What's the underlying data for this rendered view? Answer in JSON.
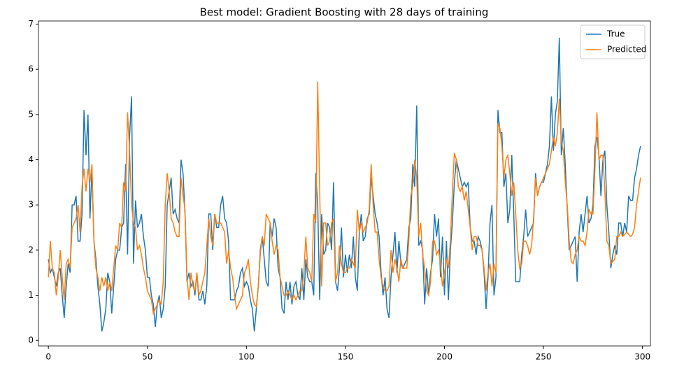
{
  "chart_data": {
    "type": "line",
    "title": "Best model: Gradient Boosting with 28 days of training",
    "x": [
      0,
      1,
      2,
      3,
      4,
      5,
      6,
      7,
      8,
      9,
      10,
      11,
      12,
      13,
      14,
      15,
      16,
      17,
      18,
      19,
      20,
      21,
      22,
      23,
      24,
      25,
      26,
      27,
      28,
      29,
      30,
      31,
      32,
      33,
      34,
      35,
      36,
      37,
      38,
      39,
      40,
      41,
      42,
      43,
      44,
      45,
      46,
      47,
      48,
      49,
      50,
      51,
      52,
      53,
      54,
      55,
      56,
      57,
      58,
      59,
      60,
      61,
      62,
      63,
      64,
      65,
      66,
      67,
      68,
      69,
      70,
      71,
      72,
      73,
      74,
      75,
      76,
      77,
      78,
      79,
      80,
      81,
      82,
      83,
      84,
      85,
      86,
      87,
      88,
      89,
      90,
      91,
      92,
      93,
      94,
      95,
      96,
      97,
      98,
      99,
      100,
      101,
      102,
      103,
      104,
      105,
      106,
      107,
      108,
      109,
      110,
      111,
      112,
      113,
      114,
      115,
      116,
      117,
      118,
      119,
      120,
      121,
      122,
      123,
      124,
      125,
      126,
      127,
      128,
      129,
      130,
      131,
      132,
      133,
      134,
      135,
      136,
      137,
      138,
      139,
      140,
      141,
      142,
      143,
      144,
      145,
      146,
      147,
      148,
      149,
      150,
      151,
      152,
      153,
      154,
      155,
      156,
      157,
      158,
      159,
      160,
      161,
      162,
      163,
      164,
      165,
      166,
      167,
      168,
      169,
      170,
      171,
      172,
      173,
      174,
      175,
      176,
      177,
      178,
      179,
      180,
      181,
      182,
      183,
      184,
      185,
      186,
      187,
      188,
      189,
      190,
      191,
      192,
      193,
      194,
      195,
      196,
      197,
      198,
      199,
      200,
      201,
      202,
      203,
      204,
      205,
      206,
      207,
      208,
      209,
      210,
      211,
      212,
      213,
      214,
      215,
      216,
      217,
      218,
      219,
      220,
      221,
      222,
      223,
      224,
      225,
      226,
      227,
      228,
      229,
      230,
      231,
      232,
      233,
      234,
      235,
      236,
      237,
      238,
      239,
      240,
      241,
      242,
      243,
      244,
      245,
      246,
      247,
      248,
      249,
      250,
      251,
      252,
      253,
      254,
      255,
      256,
      257,
      258,
      259,
      260,
      261,
      262,
      263,
      264,
      265,
      266,
      267,
      268,
      269,
      270,
      271,
      272,
      273,
      274,
      275,
      276,
      277,
      278,
      279,
      280,
      281,
      282,
      283,
      284,
      285,
      286,
      287,
      288,
      289,
      290,
      291,
      292,
      293,
      294,
      295,
      296,
      297,
      298,
      299
    ],
    "series": [
      {
        "name": "True",
        "color": "#1f77b4",
        "values": [
          1.8,
          1.5,
          1.6,
          1.4,
          1.2,
          1.5,
          1.6,
          1.0,
          0.5,
          1.2,
          1.7,
          1.5,
          3.0,
          3.0,
          3.2,
          2.2,
          2.2,
          2.8,
          5.1,
          4.1,
          5.0,
          2.7,
          3.8,
          2.2,
          1.8,
          1.2,
          0.8,
          0.2,
          0.4,
          0.7,
          1.5,
          1.3,
          0.6,
          1.2,
          1.8,
          2.0,
          2.0,
          2.5,
          2.6,
          3.9,
          1.9,
          4.5,
          5.4,
          1.7,
          3.1,
          2.5,
          2.6,
          2.8,
          2.3,
          2.0,
          1.4,
          1.4,
          1.0,
          0.8,
          0.3,
          0.8,
          1.0,
          0.5,
          0.7,
          1.2,
          3.0,
          3.3,
          3.6,
          2.8,
          2.9,
          2.7,
          2.6,
          4.0,
          3.7,
          2.8,
          1.3,
          1.5,
          1.2,
          1.3,
          1.0,
          1.5,
          0.9,
          0.9,
          1.1,
          0.8,
          1.2,
          2.8,
          2.8,
          2.0,
          2.8,
          2.5,
          2.5,
          3.0,
          3.2,
          2.7,
          2.6,
          2.2,
          0.9,
          0.9,
          0.9,
          1.1,
          1.2,
          1.5,
          1.6,
          1.2,
          1.3,
          1.2,
          0.9,
          0.7,
          0.2,
          0.7,
          1.2,
          2.0,
          2.3,
          1.8,
          1.3,
          1.2,
          2.6,
          2.3,
          2.7,
          2.5,
          1.6,
          1.4,
          0.7,
          0.6,
          1.3,
          0.9,
          1.3,
          0.8,
          1.2,
          1.3,
          1.0,
          0.9,
          1.6,
          0.9,
          1.8,
          1.4,
          1.3,
          1.3,
          1.0,
          3.7,
          3.0,
          0.9,
          2.8,
          1.9,
          2.0,
          2.6,
          2.5,
          2.0,
          3.5,
          1.3,
          1.1,
          1.6,
          2.5,
          1.4,
          1.9,
          1.5,
          1.9,
          1.6,
          2.3,
          1.4,
          1.1,
          2.4,
          2.8,
          2.2,
          2.3,
          2.7,
          2.8,
          3.6,
          3.2,
          2.8,
          2.6,
          2.3,
          1.5,
          1.0,
          1.4,
          0.7,
          0.5,
          1.4,
          1.9,
          2.4,
          1.5,
          2.2,
          1.7,
          1.6,
          1.7,
          1.8,
          2.5,
          2.7,
          3.9,
          3.4,
          5.2,
          2.1,
          2.2,
          2.0,
          0.8,
          1.6,
          1.0,
          1.5,
          1.8,
          2.8,
          2.3,
          2.7,
          1.4,
          2.3,
          1.0,
          2.2,
          0.9,
          2.0,
          2.6,
          3.5,
          4.0,
          3.8,
          3.6,
          3.4,
          3.5,
          3.4,
          3.5,
          2.5,
          2.2,
          2.2,
          1.9,
          2.3,
          2.2,
          2.0,
          1.5,
          0.7,
          1.4,
          2.6,
          3.0,
          1.0,
          1.4,
          5.1,
          4.6,
          4.6,
          3.4,
          3.7,
          2.6,
          2.9,
          4.1,
          2.8,
          1.3,
          1.3,
          1.3,
          1.9,
          2.3,
          2.9,
          2.3,
          2.4,
          2.5,
          2.6,
          3.7,
          3.2,
          3.4,
          3.5,
          3.5,
          3.7,
          3.9,
          4.3,
          5.4,
          4.2,
          5.0,
          5.3,
          6.7,
          4.1,
          4.7,
          3.9,
          2.9,
          2.0,
          2.1,
          2.2,
          2.3,
          1.3,
          2.4,
          2.8,
          2.4,
          2.8,
          3.2,
          2.6,
          2.7,
          3.0,
          4.3,
          4.5,
          4.1,
          3.2,
          4.0,
          4.2,
          3.0,
          2.4,
          1.6,
          1.9,
          2.1,
          1.9,
          2.6,
          2.6,
          2.3,
          2.6,
          2.4,
          3.2,
          3.1,
          3.1,
          3.6,
          3.8,
          4.1,
          4.3
        ]
      },
      {
        "name": "Predicted",
        "color": "#ff7f0e",
        "values": [
          1.4,
          2.2,
          1.6,
          1.5,
          1.0,
          1.4,
          2.0,
          1.4,
          0.9,
          1.7,
          1.8,
          1.6,
          2.5,
          2.6,
          2.7,
          3.0,
          2.4,
          3.4,
          3.8,
          3.3,
          3.8,
          3.5,
          3.9,
          2.2,
          1.6,
          1.4,
          1.1,
          1.4,
          1.2,
          1.4,
          1.1,
          1.3,
          1.1,
          1.6,
          2.1,
          2.0,
          2.6,
          2.5,
          3.5,
          3.3,
          5.05,
          4.2,
          3.0,
          2.6,
          2.5,
          2.0,
          2.1,
          1.9,
          1.6,
          1.4,
          1.1,
          1.0,
          0.9,
          0.6,
          0.7,
          0.8,
          0.9,
          0.8,
          1.3,
          3.0,
          3.7,
          3.3,
          2.7,
          2.6,
          2.4,
          2.3,
          2.3,
          3.6,
          3.2,
          2.9,
          1.4,
          0.9,
          1.5,
          1.2,
          1.1,
          1.5,
          1.0,
          1.1,
          1.3,
          1.5,
          2.1,
          2.7,
          2.3,
          2.1,
          2.8,
          2.6,
          2.6,
          2.6,
          2.5,
          2.4,
          1.7,
          2.0,
          1.6,
          1.4,
          1.0,
          0.7,
          0.8,
          0.9,
          1.0,
          1.5,
          1.6,
          1.8,
          1.3,
          1.0,
          0.8,
          0.75,
          1.2,
          1.9,
          2.3,
          2.1,
          2.8,
          2.7,
          2.6,
          2.2,
          1.9,
          2.1,
          2.0,
          1.4,
          1.2,
          1.0,
          1.0,
          1.1,
          1.0,
          0.9,
          1.0,
          0.9,
          1.0,
          1.1,
          1.1,
          1.5,
          2.3,
          1.6,
          1.5,
          1.3,
          2.8,
          2.6,
          5.73,
          3.3,
          1.2,
          2.6,
          2.6,
          2.1,
          2.2,
          2.6,
          2.7,
          1.3,
          1.5,
          2.1,
          1.7,
          1.5,
          1.5,
          1.6,
          1.6,
          1.8,
          1.7,
          1.6,
          2.9,
          2.4,
          2.6,
          2.4,
          2.5,
          2.6,
          2.9,
          3.9,
          3.0,
          2.4,
          2.4,
          1.8,
          1.4,
          1.2,
          1.1,
          1.1,
          1.2,
          2.0,
          1.5,
          1.8,
          1.6,
          1.3,
          1.8,
          1.6,
          1.6,
          1.6,
          2.2,
          3.2,
          3.4,
          4.0,
          3.6,
          2.3,
          2.6,
          1.9,
          1.6,
          1.1,
          1.0,
          1.3,
          2.2,
          2.2,
          1.9,
          2.0,
          1.7,
          1.2,
          1.5,
          1.8,
          1.6,
          2.2,
          3.3,
          4.15,
          4.0,
          3.4,
          3.3,
          3.4,
          3.1,
          3.3,
          2.9,
          2.5,
          2.0,
          2.3,
          2.3,
          2.1,
          2.1,
          2.0,
          1.6,
          1.1,
          1.5,
          1.7,
          1.2,
          1.7,
          1.5,
          4.8,
          4.7,
          4.3,
          3.6,
          4.0,
          4.1,
          3.7,
          3.2,
          3.5,
          2.8,
          2.0,
          1.6,
          1.7,
          2.2,
          2.2,
          2.1,
          1.9,
          2.1,
          2.7,
          3.6,
          3.2,
          3.4,
          3.5,
          3.6,
          3.7,
          3.8,
          3.9,
          4.2,
          4.5,
          4.3,
          4.6,
          5.35,
          4.4,
          4.2,
          3.5,
          3.0,
          2.2,
          1.75,
          1.7,
          1.9,
          2.0,
          2.3,
          2.2,
          2.2,
          2.1,
          2.4,
          2.9,
          2.8,
          2.8,
          3.8,
          5.05,
          4.0,
          4.1,
          4.1,
          3.3,
          2.2,
          2.1,
          1.7,
          1.75,
          1.8,
          2.3,
          2.3,
          2.4,
          2.3,
          2.35,
          2.4,
          2.35,
          2.3,
          2.35,
          2.5,
          3.0,
          3.3,
          3.6
        ]
      }
    ],
    "xlim": [
      -5,
      304
    ],
    "xticks": [
      0,
      50,
      100,
      150,
      200,
      250,
      300
    ],
    "ylim": [
      -0.12,
      7.07
    ],
    "yticks": [
      0,
      1,
      2,
      3,
      4,
      5,
      6,
      7
    ],
    "legend": "upper right"
  }
}
